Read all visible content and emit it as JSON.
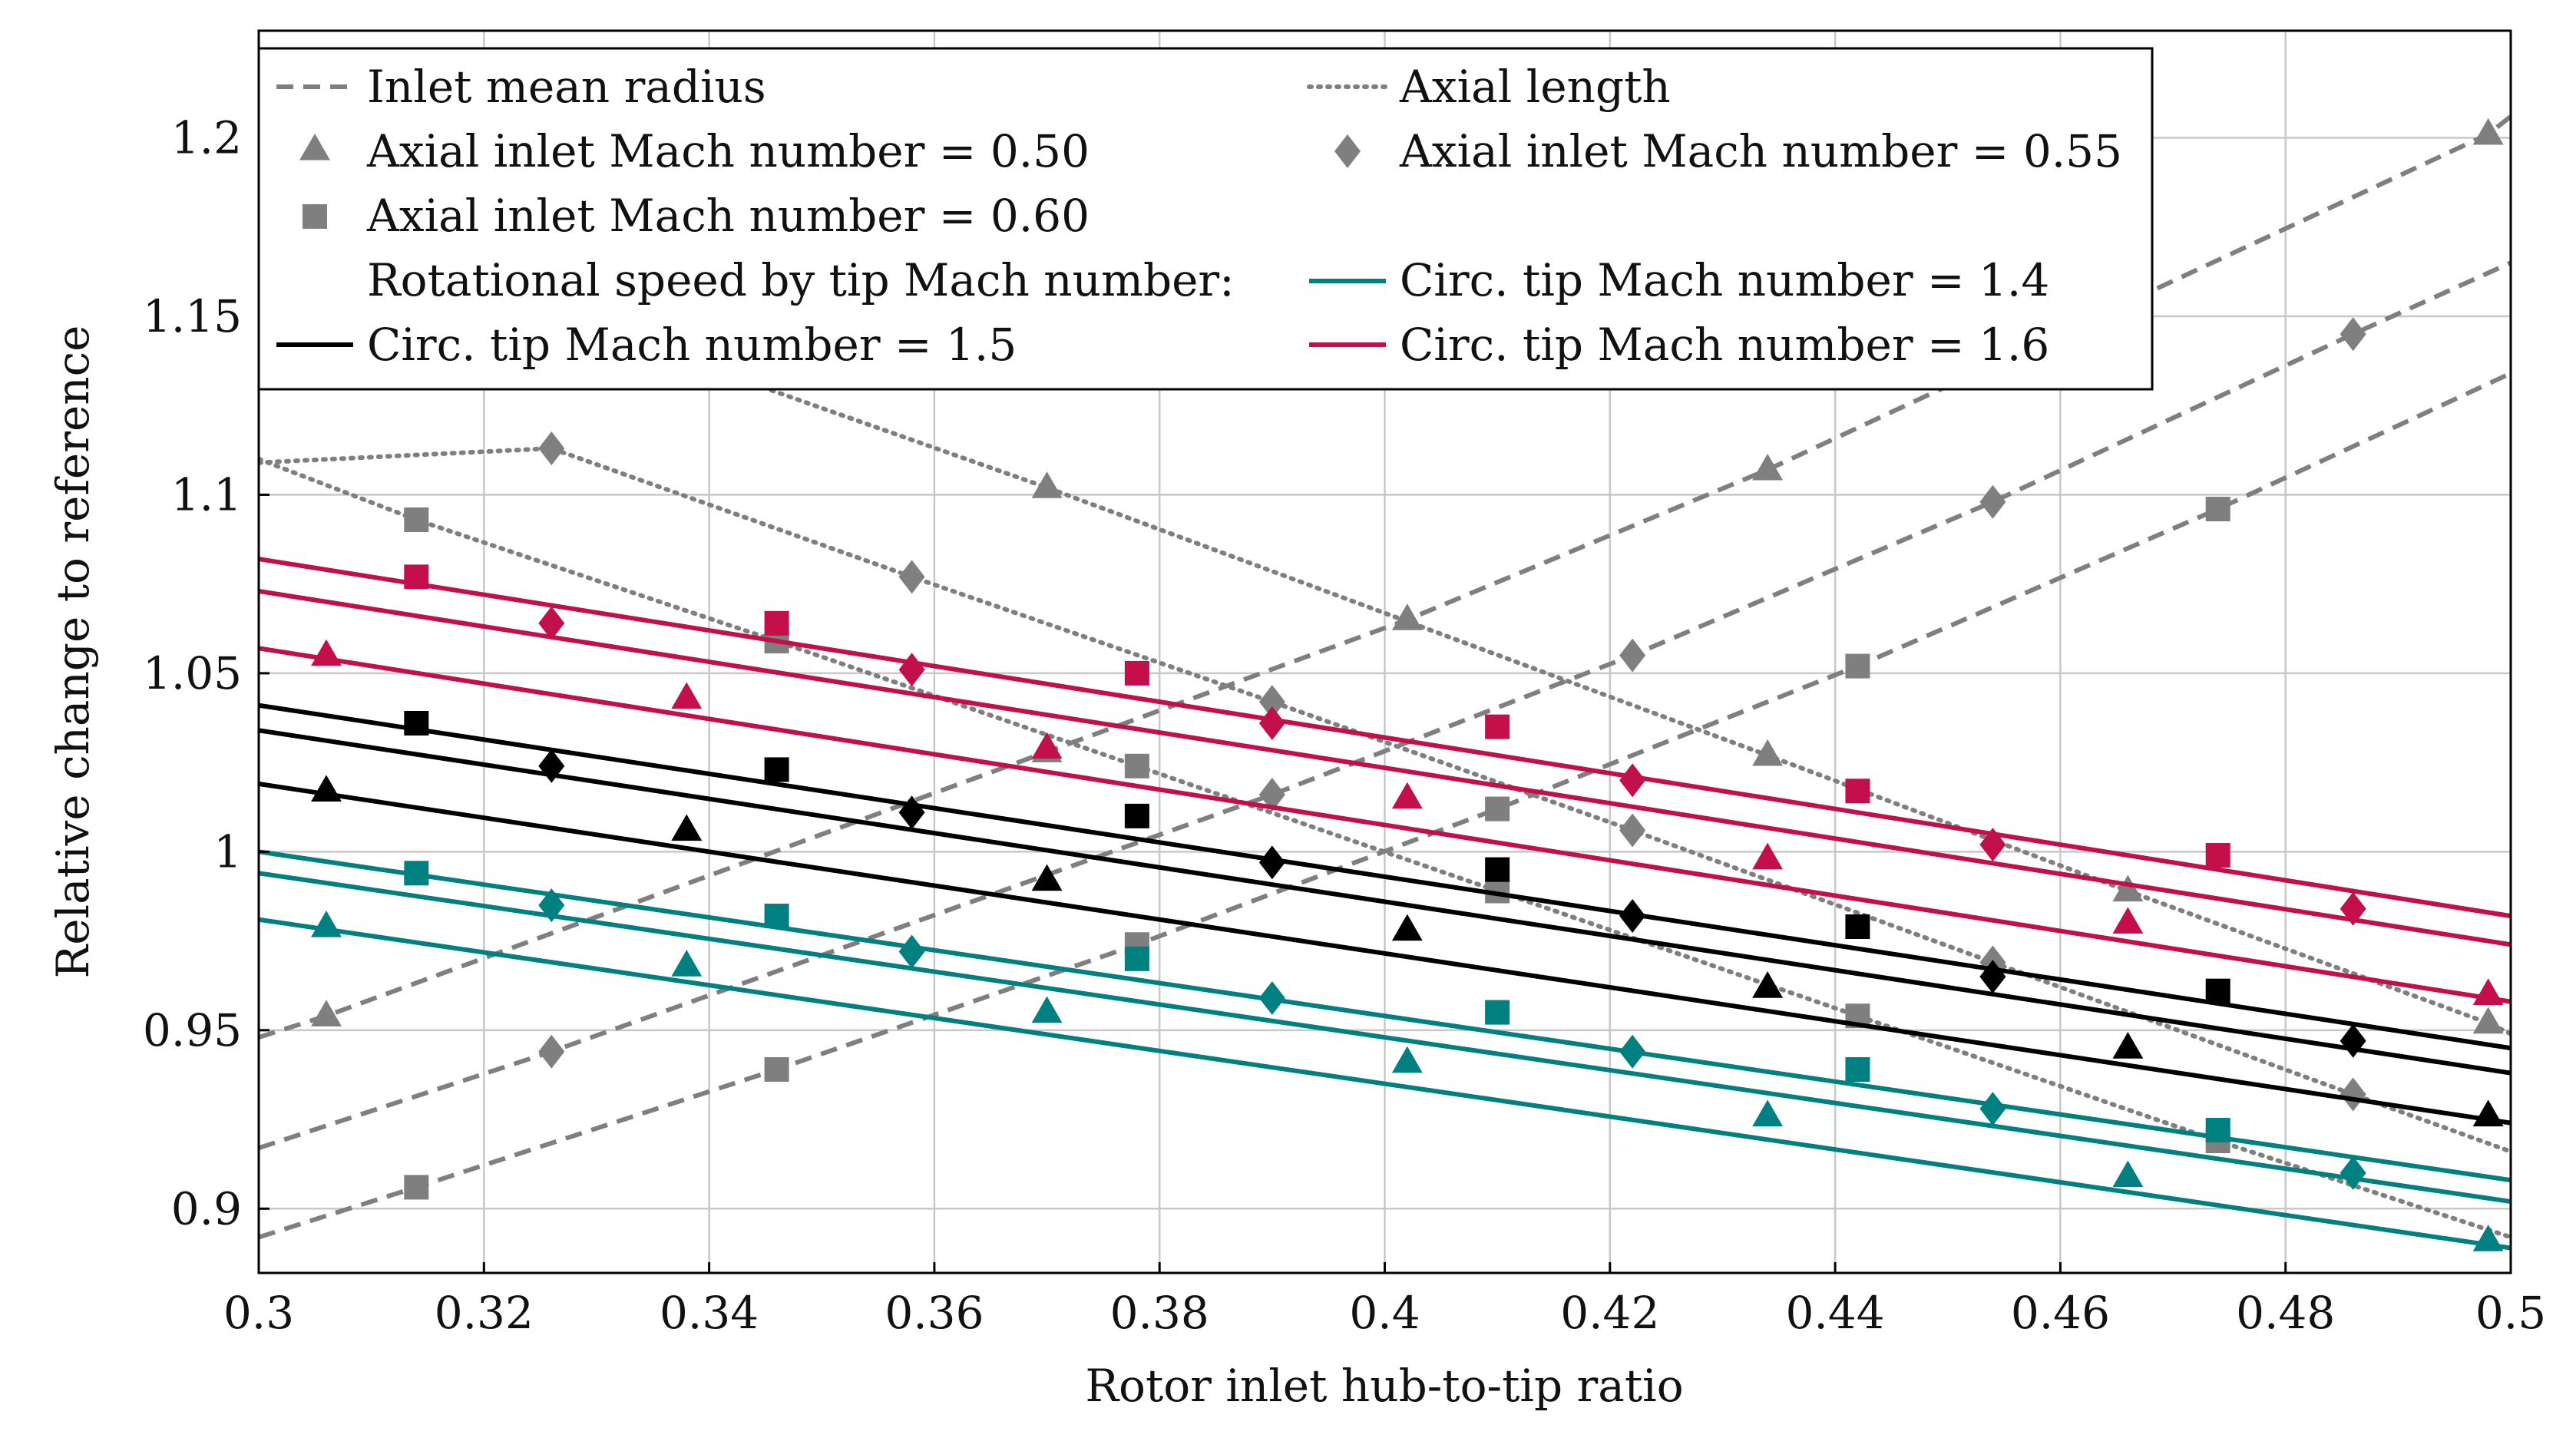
{
  "chart_data": {
    "type": "line",
    "title": "",
    "xlabel": "Rotor inlet hub-to-tip ratio",
    "ylabel": "Relative change to reference",
    "xlim": [
      0.3,
      0.5
    ],
    "ylim": [
      0.882,
      1.23
    ],
    "x_ticks": [
      "0.3",
      "0.32",
      "0.34",
      "0.36",
      "0.38",
      "0.4",
      "0.42",
      "0.44",
      "0.46",
      "0.48",
      "0.5"
    ],
    "x_tick_values": [
      0.3,
      0.32,
      0.34,
      0.36,
      0.38,
      0.4,
      0.42,
      0.44,
      0.46,
      0.48,
      0.5
    ],
    "y_ticks": [
      "0.9",
      "0.95",
      "1",
      "1.05",
      "1.1",
      "1.15",
      "1.2"
    ],
    "y_tick_values": [
      0.9,
      0.95,
      1.0,
      1.05,
      1.1,
      1.15,
      1.2
    ],
    "grid": true,
    "legend_position": "top",
    "colors": {
      "gray": "#7f7f7f",
      "black": "#000000",
      "teal": "#008080",
      "crimson": "#c3104b"
    },
    "legend": {
      "inlet_mean_radius": "Inlet mean radius",
      "axial_length": "Axial length",
      "mach_050": "Axial inlet Mach number = 0.50",
      "mach_055": "Axial inlet Mach number = 0.55",
      "mach_060": "Axial inlet Mach number = 0.60",
      "rotational_header": "Rotational speed by tip Mach number:",
      "tip_14": "Circ. tip Mach number = 1.4",
      "tip_15": "Circ. tip Mach number = 1.5",
      "tip_16": "Circ. tip Mach number = 1.6"
    },
    "series": [
      {
        "group": "inlet_mean_radius",
        "mach": "0.50",
        "color": "gray",
        "dash": "dash",
        "marker": "triangle",
        "x": [
          0.3,
          0.306,
          0.37,
          0.402,
          0.434,
          0.498,
          0.5
        ],
        "y": [
          0.948,
          0.954,
          1.028,
          1.065,
          1.107,
          1.201,
          1.206
        ]
      },
      {
        "group": "inlet_mean_radius",
        "mach": "0.55",
        "color": "gray",
        "dash": "dash",
        "marker": "diamond",
        "x": [
          0.3,
          0.326,
          0.39,
          0.422,
          0.454,
          0.486,
          0.5
        ],
        "y": [
          0.917,
          0.944,
          1.016,
          1.055,
          1.098,
          1.145,
          1.165
        ]
      },
      {
        "group": "inlet_mean_radius",
        "mach": "0.60",
        "color": "gray",
        "dash": "dash",
        "marker": "square",
        "x": [
          0.3,
          0.314,
          0.346,
          0.378,
          0.41,
          0.442,
          0.474,
          0.5
        ],
        "y": [
          0.892,
          0.906,
          0.939,
          0.974,
          1.012,
          1.052,
          1.096,
          1.134
        ]
      },
      {
        "group": "axial_length",
        "mach": "0.50",
        "color": "gray",
        "dash": "dot",
        "marker": "triangle",
        "x": [
          0.3,
          0.37,
          0.434,
          0.466,
          0.498,
          0.5
        ],
        "y": [
          1.18,
          1.102,
          1.027,
          0.989,
          0.952,
          0.949
        ]
      },
      {
        "group": "axial_length",
        "mach": "0.55",
        "color": "gray",
        "dash": "dot",
        "marker": "diamond",
        "x": [
          0.3,
          0.326,
          0.358,
          0.39,
          0.422,
          0.454,
          0.486,
          0.5
        ],
        "y": [
          1.109,
          1.113,
          1.077,
          1.042,
          1.006,
          0.969,
          0.932,
          0.916
        ]
      },
      {
        "group": "axial_length",
        "mach": "0.60",
        "color": "gray",
        "dash": "dot",
        "marker": "square",
        "x": [
          0.3,
          0.314,
          0.346,
          0.378,
          0.41,
          0.442,
          0.474,
          0.5
        ],
        "y": [
          1.11,
          1.093,
          1.059,
          1.024,
          0.989,
          0.954,
          0.919,
          0.892
        ]
      },
      {
        "group": "tip_16",
        "mach": "0.50",
        "color": "crimson",
        "dash": "solid",
        "marker": "triangle",
        "x": [
          0.3,
          0.5
        ],
        "y": [
          1.057,
          0.958
        ],
        "markers_x": [
          0.306,
          0.338,
          0.37,
          0.402,
          0.434,
          0.466,
          0.498
        ],
        "markers_y": [
          1.055,
          1.043,
          1.029,
          1.015,
          0.998,
          0.98,
          0.96
        ]
      },
      {
        "group": "tip_16",
        "mach": "0.55",
        "color": "crimson",
        "dash": "solid",
        "marker": "diamond",
        "x": [
          0.3,
          0.5
        ],
        "y": [
          1.073,
          0.974
        ],
        "markers_x": [
          0.326,
          0.358,
          0.39,
          0.422,
          0.454,
          0.486
        ],
        "markers_y": [
          1.064,
          1.051,
          1.036,
          1.02,
          1.002,
          0.984
        ]
      },
      {
        "group": "tip_16",
        "mach": "0.60",
        "color": "crimson",
        "dash": "solid",
        "marker": "square",
        "x": [
          0.3,
          0.5
        ],
        "y": [
          1.082,
          0.982
        ],
        "markers_x": [
          0.314,
          0.346,
          0.378,
          0.41,
          0.442,
          0.474
        ],
        "markers_y": [
          1.077,
          1.064,
          1.05,
          1.035,
          1.017,
          0.999
        ]
      },
      {
        "group": "tip_15",
        "mach": "0.50",
        "color": "black",
        "dash": "solid",
        "marker": "triangle",
        "x": [
          0.3,
          0.5
        ],
        "y": [
          1.019,
          0.924
        ],
        "markers_x": [
          0.306,
          0.338,
          0.37,
          0.402,
          0.434,
          0.466,
          0.498
        ],
        "markers_y": [
          1.017,
          1.006,
          0.992,
          0.978,
          0.962,
          0.945,
          0.926
        ]
      },
      {
        "group": "tip_15",
        "mach": "0.55",
        "color": "black",
        "dash": "solid",
        "marker": "diamond",
        "x": [
          0.3,
          0.5
        ],
        "y": [
          1.034,
          0.938
        ],
        "markers_x": [
          0.326,
          0.358,
          0.39,
          0.422,
          0.454,
          0.486
        ],
        "markers_y": [
          1.024,
          1.011,
          0.997,
          0.982,
          0.965,
          0.947
        ]
      },
      {
        "group": "tip_15",
        "mach": "0.60",
        "color": "black",
        "dash": "solid",
        "marker": "square",
        "x": [
          0.3,
          0.5
        ],
        "y": [
          1.041,
          0.945
        ],
        "markers_x": [
          0.314,
          0.346,
          0.378,
          0.41,
          0.442,
          0.474
        ],
        "markers_y": [
          1.036,
          1.023,
          1.01,
          0.995,
          0.979,
          0.961
        ]
      },
      {
        "group": "tip_14",
        "mach": "0.50",
        "color": "teal",
        "dash": "solid",
        "marker": "triangle",
        "x": [
          0.3,
          0.5
        ],
        "y": [
          0.981,
          0.889
        ],
        "markers_x": [
          0.306,
          0.338,
          0.37,
          0.402,
          0.434,
          0.466,
          0.498
        ],
        "markers_y": [
          0.979,
          0.968,
          0.955,
          0.941,
          0.926,
          0.909,
          0.891
        ]
      },
      {
        "group": "tip_14",
        "mach": "0.55",
        "color": "teal",
        "dash": "solid",
        "marker": "diamond",
        "x": [
          0.3,
          0.5
        ],
        "y": [
          0.994,
          0.902
        ],
        "markers_x": [
          0.326,
          0.358,
          0.39,
          0.422,
          0.454,
          0.486
        ],
        "markers_y": [
          0.985,
          0.972,
          0.959,
          0.944,
          0.928,
          0.91
        ]
      },
      {
        "group": "tip_14",
        "mach": "0.60",
        "color": "teal",
        "dash": "solid",
        "marker": "square",
        "x": [
          0.3,
          0.5
        ],
        "y": [
          1.0,
          0.908
        ],
        "markers_x": [
          0.314,
          0.346,
          0.378,
          0.41,
          0.442,
          0.474
        ],
        "markers_y": [
          0.994,
          0.982,
          0.97,
          0.955,
          0.939,
          0.922
        ]
      }
    ]
  }
}
